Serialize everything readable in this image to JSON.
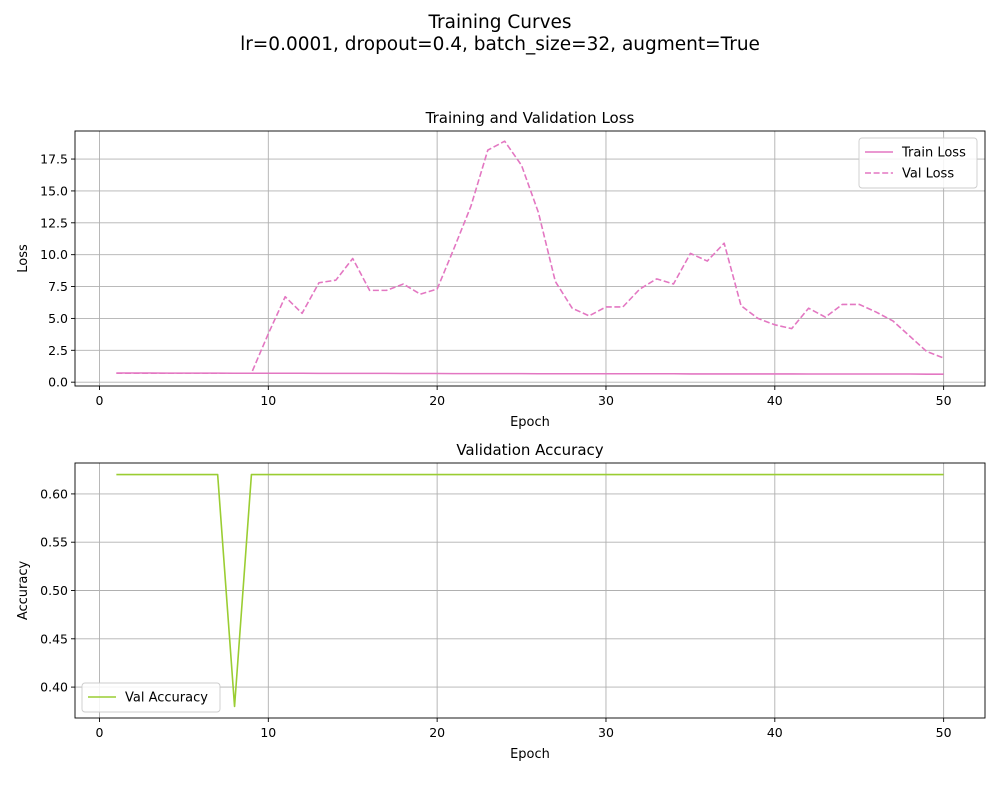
{
  "figure": {
    "title_line1": "Training Curves",
    "title_line2": "lr=0.0001, dropout=0.4, batch_size=32, augment=True"
  },
  "chart_data": [
    {
      "type": "line",
      "title": "Training and Validation Loss",
      "xlabel": "Epoch",
      "ylabel": "Loss",
      "xlim": [
        -1.45,
        52.45
      ],
      "ylim": [
        -0.3,
        19.7
      ],
      "xticks": [
        0,
        10,
        20,
        30,
        40,
        50
      ],
      "yticks": [
        0.0,
        2.5,
        5.0,
        7.5,
        10.0,
        12.5,
        15.0,
        17.5
      ],
      "ytick_labels": [
        "0.0",
        "2.5",
        "5.0",
        "7.5",
        "10.0",
        "12.5",
        "15.0",
        "17.5"
      ],
      "grid": true,
      "legend": "top-right",
      "x": [
        1,
        2,
        3,
        4,
        5,
        6,
        7,
        8,
        9,
        10,
        11,
        12,
        13,
        14,
        15,
        16,
        17,
        18,
        19,
        20,
        21,
        22,
        23,
        24,
        25,
        26,
        27,
        28,
        29,
        30,
        31,
        32,
        33,
        34,
        35,
        36,
        37,
        38,
        39,
        40,
        41,
        42,
        43,
        44,
        45,
        46,
        47,
        48,
        49,
        50
      ],
      "series": [
        {
          "name": "Train Loss",
          "color": "#e377c2",
          "dash": "solid",
          "values": [
            0.72,
            0.72,
            0.72,
            0.71,
            0.71,
            0.71,
            0.71,
            0.7,
            0.7,
            0.7,
            0.7,
            0.7,
            0.69,
            0.69,
            0.69,
            0.69,
            0.69,
            0.68,
            0.68,
            0.68,
            0.67,
            0.67,
            0.67,
            0.67,
            0.67,
            0.66,
            0.66,
            0.66,
            0.66,
            0.66,
            0.66,
            0.66,
            0.66,
            0.66,
            0.65,
            0.65,
            0.65,
            0.65,
            0.65,
            0.65,
            0.65,
            0.64,
            0.64,
            0.64,
            0.64,
            0.64,
            0.64,
            0.64,
            0.63,
            0.63
          ]
        },
        {
          "name": "Val Loss",
          "color": "#e377c2",
          "dash": "dashed",
          "values": [
            0.7,
            0.7,
            0.7,
            0.7,
            0.7,
            0.7,
            0.7,
            0.7,
            0.7,
            3.8,
            6.7,
            5.4,
            7.8,
            8.0,
            9.7,
            7.2,
            7.2,
            7.7,
            6.9,
            7.3,
            10.5,
            13.8,
            18.2,
            18.9,
            17.0,
            13.3,
            7.9,
            5.8,
            5.2,
            5.9,
            5.9,
            7.3,
            8.1,
            7.7,
            10.1,
            9.5,
            10.9,
            6.0,
            5.0,
            4.5,
            4.2,
            5.8,
            5.1,
            6.1,
            6.1,
            5.5,
            4.8,
            3.6,
            2.4,
            1.9
          ]
        }
      ]
    },
    {
      "type": "line",
      "title": "Validation Accuracy",
      "xlabel": "Epoch",
      "ylabel": "Accuracy",
      "xlim": [
        -1.45,
        52.45
      ],
      "ylim": [
        0.368,
        0.632
      ],
      "xticks": [
        0,
        10,
        20,
        30,
        40,
        50
      ],
      "yticks": [
        0.4,
        0.45,
        0.5,
        0.55,
        0.6
      ],
      "ytick_labels": [
        "0.40",
        "0.45",
        "0.50",
        "0.55",
        "0.60"
      ],
      "grid": true,
      "legend": "bottom-left",
      "x": [
        1,
        2,
        3,
        4,
        5,
        6,
        7,
        8,
        9,
        10,
        11,
        12,
        13,
        14,
        15,
        16,
        17,
        18,
        19,
        20,
        21,
        22,
        23,
        24,
        25,
        26,
        27,
        28,
        29,
        30,
        31,
        32,
        33,
        34,
        35,
        36,
        37,
        38,
        39,
        40,
        41,
        42,
        43,
        44,
        45,
        46,
        47,
        48,
        49,
        50
      ],
      "series": [
        {
          "name": "Val Accuracy",
          "color": "#9acd32",
          "dash": "solid",
          "values": [
            0.62,
            0.62,
            0.62,
            0.62,
            0.62,
            0.62,
            0.62,
            0.38,
            0.62,
            0.62,
            0.62,
            0.62,
            0.62,
            0.62,
            0.62,
            0.62,
            0.62,
            0.62,
            0.62,
            0.62,
            0.62,
            0.62,
            0.62,
            0.62,
            0.62,
            0.62,
            0.62,
            0.62,
            0.62,
            0.62,
            0.62,
            0.62,
            0.62,
            0.62,
            0.62,
            0.62,
            0.62,
            0.62,
            0.62,
            0.62,
            0.62,
            0.62,
            0.62,
            0.62,
            0.62,
            0.62,
            0.62,
            0.62,
            0.62,
            0.62
          ]
        }
      ]
    }
  ]
}
